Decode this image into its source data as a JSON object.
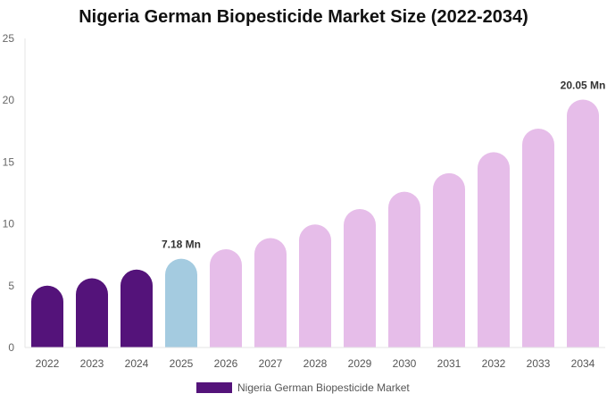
{
  "chart_data": {
    "type": "bar",
    "title": "Nigeria German Biopesticide Market Size (2022-2034)",
    "categories": [
      "2022",
      "2023",
      "2024",
      "2025",
      "2026",
      "2027",
      "2028",
      "2029",
      "2030",
      "2031",
      "2032",
      "2033",
      "2034"
    ],
    "series": [
      {
        "name": "Nigeria German Biopesticide Market",
        "values": [
          5.0,
          5.6,
          6.3,
          7.18,
          7.95,
          8.85,
          9.95,
          11.2,
          12.6,
          14.1,
          15.8,
          17.7,
          20.05
        ]
      }
    ],
    "ylim": [
      0,
      25
    ],
    "yticks": [
      0,
      5,
      10,
      15,
      20,
      25
    ],
    "grid": false,
    "legend_position": "bottom",
    "colors": {
      "historical": "#54137a",
      "current": "#a4cbe0",
      "forecast": "#e6bde9"
    },
    "bar_color_groups": [
      "historical",
      "historical",
      "historical",
      "current",
      "forecast",
      "forecast",
      "forecast",
      "forecast",
      "forecast",
      "forecast",
      "forecast",
      "forecast",
      "forecast"
    ],
    "annotations": [
      {
        "category": "2025",
        "text": "7.18 Mn"
      },
      {
        "category": "2034",
        "text": "20.05 Mn"
      }
    ]
  }
}
